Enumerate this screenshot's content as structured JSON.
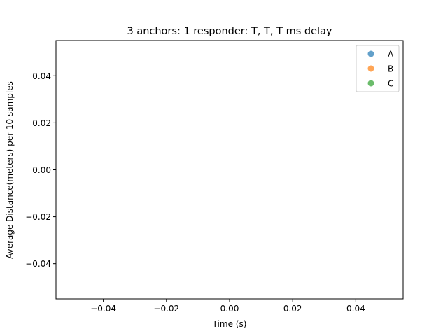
{
  "chart_data": {
    "type": "scatter",
    "title": "3 anchors: 1 responder: T, T, T ms delay",
    "xlabel": "Time (s)",
    "ylabel": "Average Distance(meters) per 10 samples",
    "xlim": [
      -0.055,
      0.055
    ],
    "ylim": [
      -0.055,
      0.055
    ],
    "xticks": [
      -0.04,
      -0.02,
      0.0,
      0.02,
      0.04
    ],
    "xtick_labels": [
      "−0.04",
      "−0.02",
      "0.00",
      "0.02",
      "0.04"
    ],
    "yticks": [
      0.04,
      0.02,
      0.0,
      -0.02,
      -0.04
    ],
    "ytick_labels": [
      "0.04",
      "0.02",
      "0.00",
      "−0.02",
      "−0.04"
    ],
    "grid": false,
    "legend_position": "top-right",
    "series": [
      {
        "name": "A",
        "color": "#1f77b4",
        "points": []
      },
      {
        "name": "B",
        "color": "#ff7f0e",
        "points": []
      },
      {
        "name": "C",
        "color": "#2ca02c",
        "points": []
      }
    ]
  }
}
